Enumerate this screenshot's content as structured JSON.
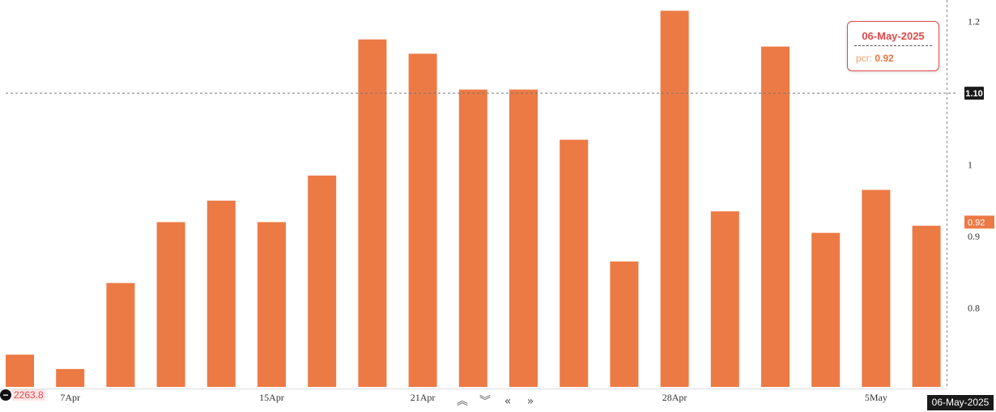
{
  "chart_data": {
    "type": "bar",
    "series_name": "pcr",
    "bar_color": "#ec7a45",
    "x_ticks": [
      "7Apr",
      "15Apr",
      "21Apr",
      "28Apr",
      "5May"
    ],
    "y_ticks": [
      "1.2",
      "1.1",
      "1",
      "0.9",
      "0.8"
    ],
    "ylim": [
      0.69,
      1.23
    ],
    "values": [
      0.735,
      0.715,
      0.835,
      0.92,
      0.95,
      0.92,
      0.985,
      1.175,
      1.155,
      1.105,
      1.105,
      1.035,
      0.865,
      1.215,
      0.935,
      1.165,
      0.905,
      0.965,
      0.915
    ],
    "tick_at_index": [
      1,
      5,
      8,
      13,
      17
    ],
    "crosshair_value": "1.10",
    "last_value_label": "0.92"
  },
  "tooltip": {
    "date": "06-May-2025",
    "key": "pcr:",
    "value": "0.92"
  },
  "bottom_left_value": "2263.8",
  "crosshair_date": "06-May-2025",
  "nav": {
    "zoom_in": "≈",
    "zoom_out": "≈",
    "pan_left": "«",
    "pan_right": "»"
  },
  "colors": {
    "accent": "#ec7a45",
    "tooltip_border": "#e24a4a",
    "tag_dark": "#1a1a1a"
  }
}
